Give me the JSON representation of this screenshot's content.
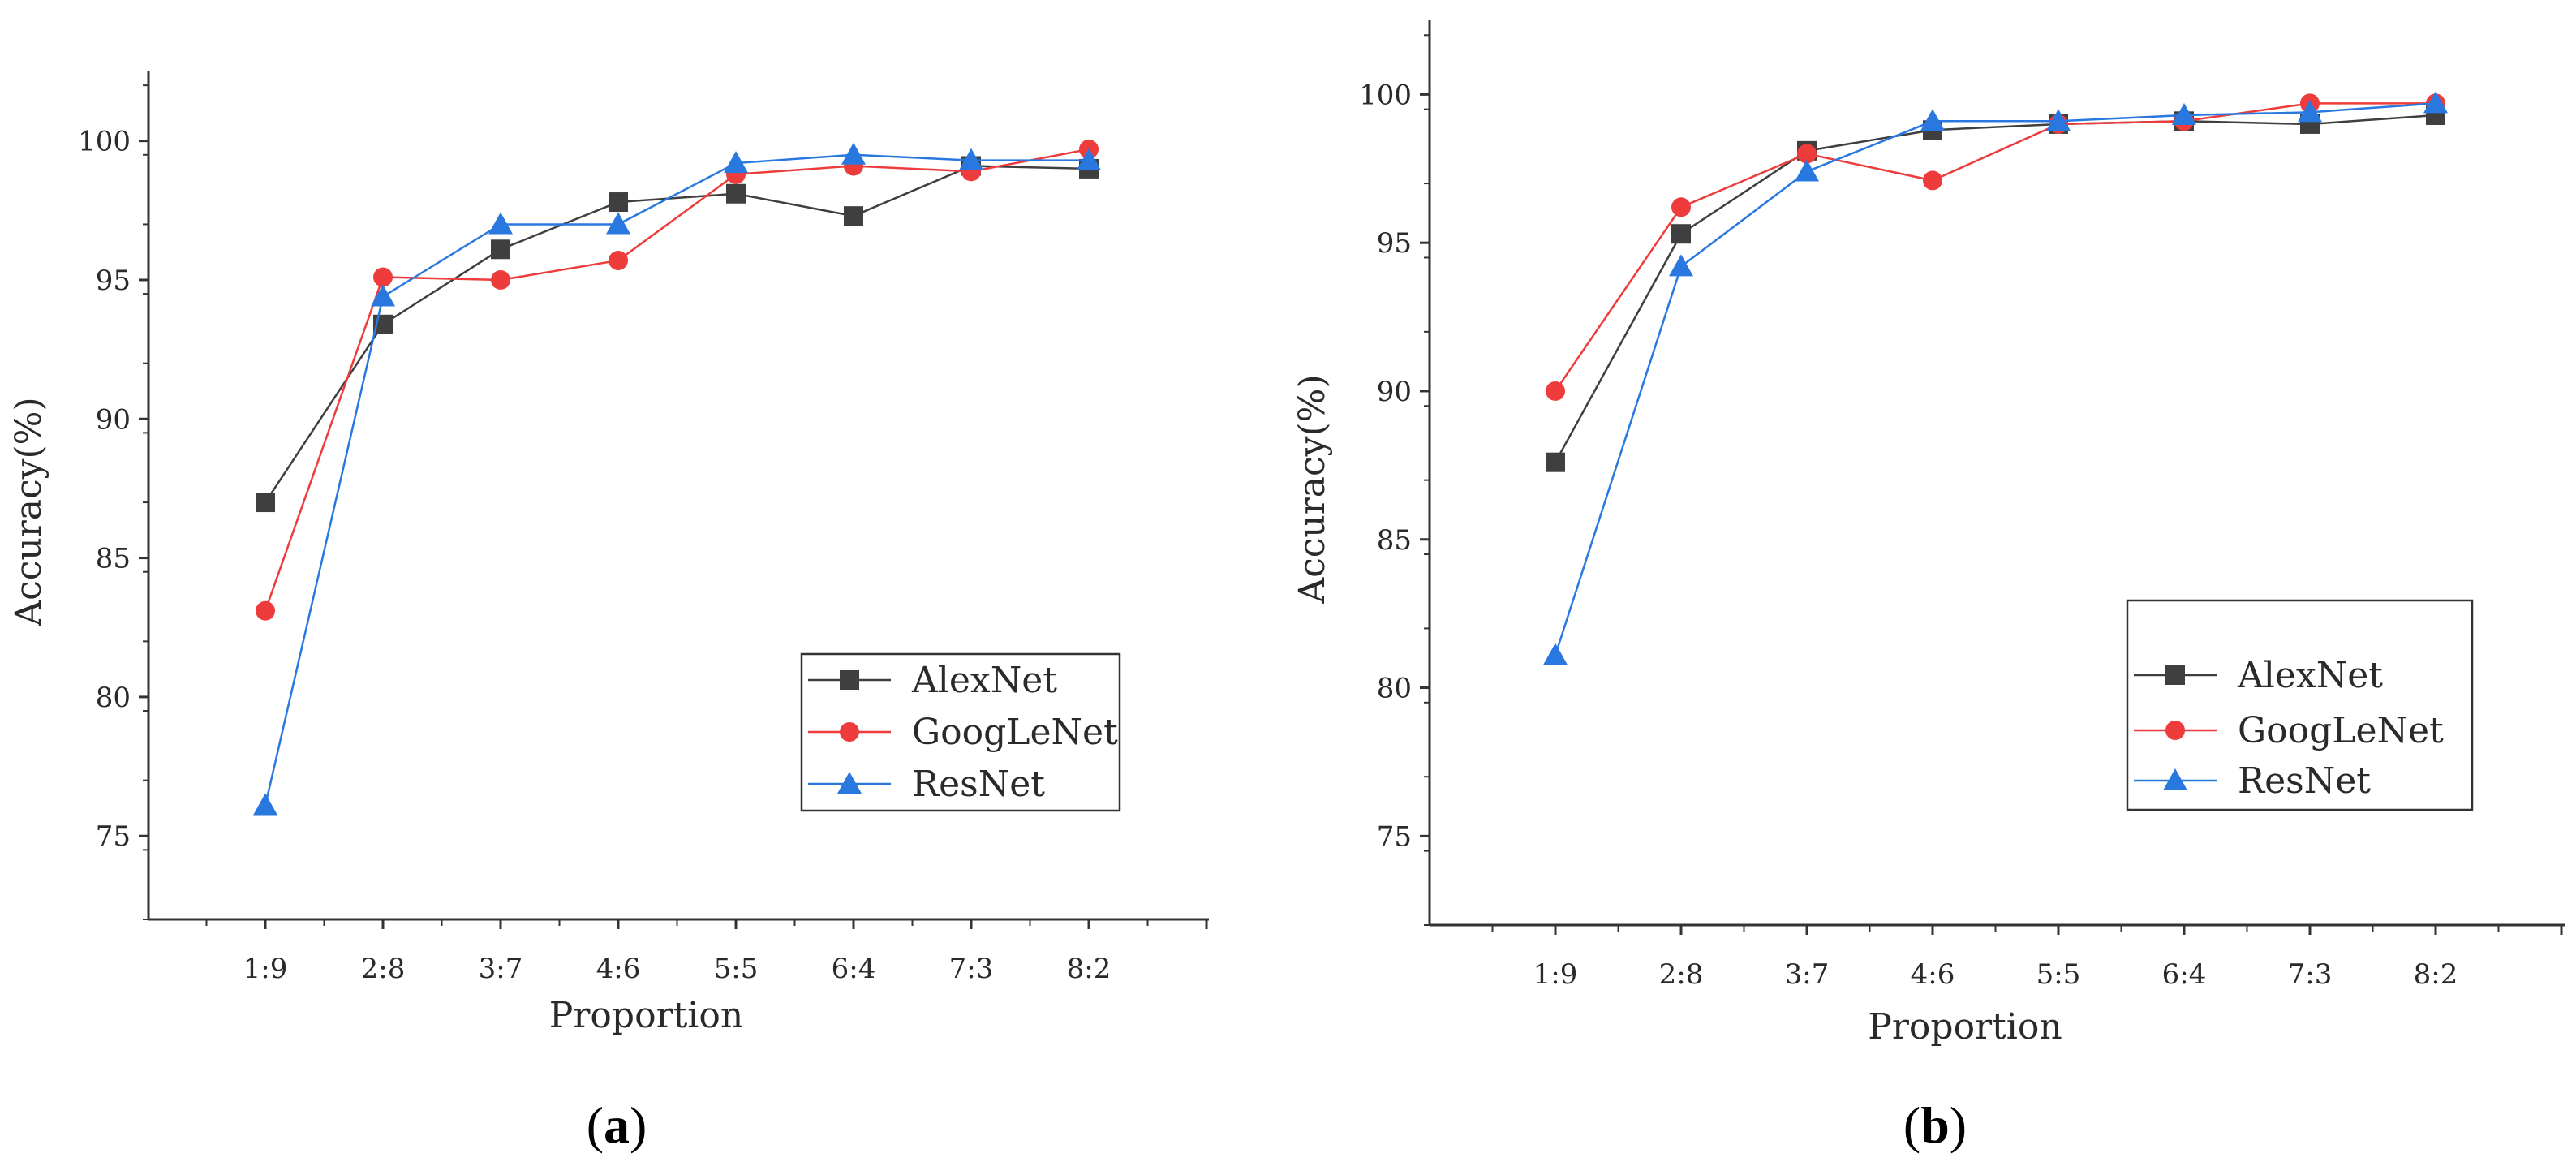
{
  "figure": {
    "colors": {
      "AlexNet": "#3f3f3f",
      "GoogLeNet": "#ee3b3b",
      "ResNet": "#2878e0"
    },
    "markers": {
      "AlexNet": "square",
      "GoogLeNet": "circle",
      "ResNet": "triangle"
    }
  },
  "chart_data": [
    {
      "type": "line",
      "caption_open": "(",
      "caption_letter": "a",
      "caption_close": ")",
      "title": "",
      "xlabel": "Proportion",
      "ylabel": "Accuracy(%)",
      "categories": [
        "1:9",
        "2:8",
        "3:7",
        "4:6",
        "5:5",
        "6:4",
        "7:3",
        "8:2"
      ],
      "ylim": [
        72,
        102.5
      ],
      "yticks": [
        75,
        80,
        85,
        90,
        95,
        100
      ],
      "legend_position": "lower-right",
      "series": [
        {
          "name": "AlexNet",
          "values": [
            87.0,
            93.4,
            96.1,
            97.8,
            98.1,
            97.3,
            99.1,
            99.0
          ]
        },
        {
          "name": "GoogLeNet",
          "values": [
            83.1,
            95.1,
            95.0,
            95.7,
            98.8,
            99.1,
            98.9,
            99.7
          ]
        },
        {
          "name": "ResNet",
          "values": [
            76.1,
            94.4,
            97.0,
            97.0,
            99.2,
            99.5,
            99.3,
            99.3
          ]
        }
      ]
    },
    {
      "type": "line",
      "caption_open": "(",
      "caption_letter": "b",
      "caption_close": ")",
      "title": "",
      "xlabel": "Proportion",
      "ylabel": "Accuracy(%)",
      "categories": [
        "1:9",
        "2:8",
        "3:7",
        "4:6",
        "5:5",
        "6:4",
        "7:3",
        "8:2"
      ],
      "ylim": [
        72,
        102.5
      ],
      "yticks": [
        75,
        80,
        85,
        90,
        95,
        100
      ],
      "legend_position": "lower-right",
      "series": [
        {
          "name": "AlexNet",
          "values": [
            87.6,
            95.3,
            98.1,
            98.8,
            99.0,
            99.1,
            99.0,
            99.3
          ]
        },
        {
          "name": "GoogLeNet",
          "values": [
            90.0,
            96.2,
            98.0,
            97.1,
            99.0,
            99.1,
            99.7,
            99.7
          ]
        },
        {
          "name": "ResNet",
          "values": [
            81.1,
            94.2,
            97.4,
            99.1,
            99.1,
            99.3,
            99.4,
            99.7
          ]
        }
      ]
    }
  ]
}
